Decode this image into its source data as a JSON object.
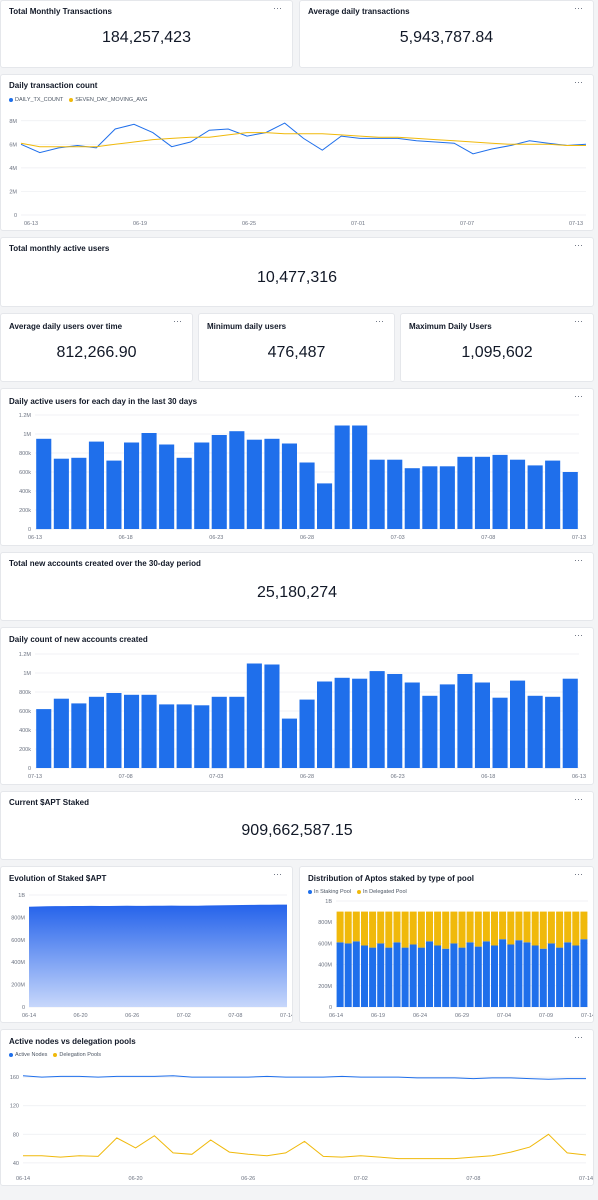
{
  "colors": {
    "blue": "#1f6feb",
    "gold": "#f0b90b",
    "grid": "#eceef1",
    "axis": "#6b7280",
    "fill_top": "#2563eb",
    "fill_bottom": "#c7d7fb"
  },
  "menu_icon": "⋯",
  "total_monthly_tx": {
    "title": "Total Monthly Transactions",
    "value": "184,257,423"
  },
  "avg_daily_tx": {
    "title": "Average daily transactions",
    "value": "5,943,787.84"
  },
  "daily_tx": {
    "title": "Daily transaction count"
  },
  "total_active_users": {
    "title": "Total monthly active users",
    "value": "10,477,316"
  },
  "avg_daily_users": {
    "title": "Average daily users over time",
    "value": "812,266.90"
  },
  "min_daily_users": {
    "title": "Minimum daily users",
    "value": "476,487"
  },
  "max_daily_users": {
    "title": "Maximum Daily Users",
    "value": "1,095,602"
  },
  "dau": {
    "title": "Daily active users for each day in the last 30 days"
  },
  "new_accounts_total": {
    "title": "Total new accounts created over the 30-day period",
    "value": "25,180,274"
  },
  "new_accounts": {
    "title": "Daily count of new accounts created"
  },
  "apt_staked": {
    "title": "Current $APT Staked",
    "value": "909,662,587.15"
  },
  "staked_evolution": {
    "title": "Evolution of Staked $APT"
  },
  "stake_distribution": {
    "title": "Distribution of Aptos staked by type of pool"
  },
  "nodes": {
    "title": "Active nodes vs delegation pools"
  },
  "chart_data": [
    {
      "id": "daily_tx",
      "type": "line",
      "title": "Daily transaction count",
      "xtick_labels": [
        "06-13",
        "06-19",
        "06-25",
        "07-01",
        "07-07",
        "07-13"
      ],
      "ytick_labels": [
        "0",
        "2M",
        "4M",
        "6M",
        "8M"
      ],
      "ylim": [
        0,
        9000000
      ],
      "legend": "top-left",
      "grid": true,
      "series": [
        {
          "name": "DAILY_TX_COUNT",
          "color": "#1f6feb",
          "values": [
            6000000,
            5300000,
            5700000,
            5900000,
            5700000,
            7300000,
            7700000,
            7000000,
            5800000,
            6200000,
            7200000,
            7300000,
            6700000,
            7000000,
            7800000,
            6500000,
            5500000,
            6700000,
            6500000,
            6500000,
            6500000,
            6300000,
            6200000,
            6100000,
            5200000,
            5600000,
            5900000,
            6300000,
            6100000,
            5900000,
            6000000
          ]
        },
        {
          "name": "SEVEN_DAY_MOVING_AVG",
          "color": "#f0b90b",
          "values": [
            6100000,
            5800000,
            5800000,
            5800000,
            5800000,
            6000000,
            6200000,
            6400000,
            6500000,
            6600000,
            6600000,
            6800000,
            7000000,
            7000000,
            6900000,
            6900000,
            6900000,
            6800000,
            6700000,
            6600000,
            6600000,
            6500000,
            6400000,
            6300000,
            6200000,
            6100000,
            6000000,
            6000000,
            6000000,
            5900000,
            5900000
          ]
        }
      ]
    },
    {
      "id": "dau",
      "type": "bar",
      "title": "Daily active users for each day in the last 30 days",
      "xtick_labels": [
        "06-13",
        "06-18",
        "06-23",
        "06-28",
        "07-03",
        "07-08",
        "07-13"
      ],
      "ytick_labels": [
        "0",
        "200k",
        "400k",
        "600k",
        "800k",
        "1M",
        "1.2M"
      ],
      "ylim": [
        0,
        1200000
      ],
      "grid": true,
      "series": [
        {
          "name": "",
          "color": "#1f6feb",
          "values": [
            950000,
            740000,
            750000,
            920000,
            720000,
            910000,
            1010000,
            890000,
            750000,
            910000,
            990000,
            1030000,
            940000,
            950000,
            900000,
            700000,
            480000,
            1090000,
            1090000,
            730000,
            730000,
            640000,
            660000,
            660000,
            760000,
            760000,
            780000,
            730000,
            670000,
            720000,
            600000
          ]
        }
      ]
    },
    {
      "id": "new_accounts",
      "type": "bar",
      "title": "Daily count of new accounts created",
      "xtick_labels": [
        "07-13",
        "07-08",
        "07-03",
        "06-28",
        "06-23",
        "06-18",
        "06-13"
      ],
      "ytick_labels": [
        "0",
        "200k",
        "400k",
        "600k",
        "800k",
        "1M",
        "1.2M"
      ],
      "ylim": [
        0,
        1200000
      ],
      "grid": true,
      "series": [
        {
          "name": "",
          "color": "#1f6feb",
          "values": [
            620000,
            730000,
            680000,
            750000,
            790000,
            770000,
            770000,
            670000,
            670000,
            660000,
            750000,
            750000,
            1100000,
            1090000,
            520000,
            720000,
            910000,
            950000,
            940000,
            1020000,
            990000,
            900000,
            760000,
            880000,
            990000,
            900000,
            740000,
            920000,
            760000,
            750000,
            940000
          ]
        }
      ]
    },
    {
      "id": "staked_evolution",
      "type": "area",
      "title": "Evolution of Staked $APT",
      "xtick_labels": [
        "06-14",
        "06-20",
        "06-26",
        "07-02",
        "07-08",
        "07-14"
      ],
      "ytick_labels": [
        "0",
        "200M",
        "400M",
        "600M",
        "800M",
        "1B"
      ],
      "ylim": [
        0,
        1000000000
      ],
      "grid": true,
      "series": [
        {
          "name": "",
          "color": "#2563eb",
          "values": [
            890000000,
            893000000,
            895000000,
            896000000,
            896000000,
            897000000,
            897000000,
            898000000,
            897000000,
            897000000,
            898000000,
            899000000,
            898000000,
            898000000,
            899000000,
            900000000,
            901000000,
            900000000,
            899000000,
            900000000,
            902000000,
            903000000,
            904000000,
            905000000,
            906000000,
            907000000,
            908000000,
            909000000,
            910000000,
            910000000
          ]
        }
      ]
    },
    {
      "id": "stake_distribution",
      "type": "bar",
      "title": "Distribution of Aptos staked by type of pool",
      "stacked": true,
      "xtick_labels": [
        "06-14",
        "06-19",
        "06-24",
        "06-29",
        "07-04",
        "07-09",
        "07-14"
      ],
      "ytick_labels": [
        "0",
        "200M",
        "400M",
        "600M",
        "800M",
        "1B"
      ],
      "ylim": [
        0,
        1000000000
      ],
      "legend": "top-left",
      "grid": true,
      "series": [
        {
          "name": "In Staking Pool",
          "color": "#1f6feb",
          "values": [
            610000000,
            600000000,
            620000000,
            580000000,
            560000000,
            600000000,
            560000000,
            610000000,
            560000000,
            590000000,
            560000000,
            620000000,
            580000000,
            550000000,
            600000000,
            560000000,
            610000000,
            570000000,
            620000000,
            580000000,
            640000000,
            590000000,
            630000000,
            610000000,
            580000000,
            550000000,
            600000000,
            560000000,
            610000000,
            580000000,
            640000000
          ]
        },
        {
          "name": "In Delegated Pool",
          "color": "#f0b90b",
          "values": [
            290000000,
            300000000,
            280000000,
            320000000,
            340000000,
            300000000,
            340000000,
            290000000,
            340000000,
            310000000,
            340000000,
            280000000,
            320000000,
            350000000,
            300000000,
            340000000,
            290000000,
            330000000,
            280000000,
            320000000,
            260000000,
            310000000,
            270000000,
            290000000,
            320000000,
            350000000,
            300000000,
            340000000,
            290000000,
            320000000,
            260000000
          ]
        }
      ]
    },
    {
      "id": "nodes",
      "type": "line",
      "title": "Active nodes vs delegation pools",
      "xtick_labels": [
        "06-14",
        "06-20",
        "06-26",
        "07-02",
        "07-08",
        "07-14"
      ],
      "ytick_labels": [
        "40",
        "80",
        "120",
        "160"
      ],
      "ylim": [
        30,
        170
      ],
      "legend": "top-left",
      "grid": true,
      "series": [
        {
          "name": "Active Nodes",
          "color": "#1f6feb",
          "values": [
            162,
            160,
            161,
            161,
            160,
            161,
            161,
            161,
            162,
            160,
            160,
            160,
            160,
            161,
            160,
            160,
            160,
            161,
            160,
            160,
            160,
            159,
            159,
            159,
            158,
            159,
            159,
            158,
            157,
            158,
            158
          ]
        },
        {
          "name": "Delegation Pools",
          "color": "#f0b90b",
          "values": [
            50,
            50,
            48,
            50,
            49,
            75,
            61,
            78,
            54,
            52,
            72,
            55,
            52,
            50,
            54,
            70,
            49,
            48,
            50,
            48,
            46,
            46,
            46,
            46,
            48,
            50,
            55,
            62,
            80,
            54,
            51
          ]
        }
      ]
    }
  ]
}
